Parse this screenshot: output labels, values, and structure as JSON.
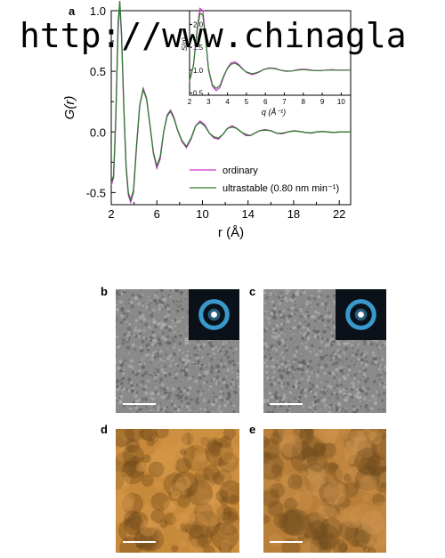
{
  "watermark": "http://www.chinagla",
  "panels": {
    "a": "a",
    "b": "b",
    "c": "c",
    "d": "d",
    "e": "e"
  },
  "chart_data": [
    {
      "type": "line",
      "xlabel": "r (Å)",
      "ylabel": "G(r)",
      "xlim": [
        2,
        23
      ],
      "ylim": [
        -0.6,
        1.0
      ],
      "xticks": [
        "2",
        "6",
        "10",
        "14",
        "18",
        "22"
      ],
      "yticks": [
        "1.0",
        "0.5",
        "0.0",
        "-0.5"
      ],
      "legend_position": "bottom-right",
      "series": [
        {
          "name": "ordinary",
          "color": "#cc33cc",
          "x": [
            2.0,
            2.2,
            2.4,
            2.6,
            2.75,
            2.9,
            3.1,
            3.3,
            3.5,
            3.7,
            3.95,
            4.2,
            4.5,
            4.8,
            5.1,
            5.4,
            5.7,
            6.0,
            6.3,
            6.6,
            6.9,
            7.2,
            7.5,
            7.8,
            8.2,
            8.6,
            9.0,
            9.4,
            9.8,
            10.2,
            10.6,
            11.0,
            11.4,
            11.8,
            12.2,
            12.6,
            13.0,
            13.4,
            13.8,
            14.2,
            14.6,
            15.0,
            15.5,
            16.0,
            16.5,
            17.0,
            17.5,
            18.0,
            18.5,
            19.0,
            19.5,
            20.0,
            20.5,
            21.0,
            21.5,
            22.0,
            22.5,
            23.0
          ],
          "y": [
            -0.44,
            -0.38,
            0.1,
            0.85,
            1.05,
            0.8,
            0.2,
            -0.3,
            -0.52,
            -0.58,
            -0.5,
            -0.15,
            0.22,
            0.36,
            0.28,
            0.05,
            -0.18,
            -0.3,
            -0.22,
            0.0,
            0.14,
            0.18,
            0.12,
            0.02,
            -0.08,
            -0.13,
            -0.06,
            0.05,
            0.09,
            0.06,
            -0.01,
            -0.05,
            -0.06,
            -0.02,
            0.03,
            0.05,
            0.03,
            0.0,
            -0.03,
            -0.03,
            -0.01,
            0.01,
            0.02,
            0.01,
            -0.01,
            -0.015,
            0.0,
            0.01,
            0.005,
            -0.005,
            -0.01,
            0.0,
            0.005,
            0.0,
            -0.005,
            0.0,
            0.0,
            0.0
          ]
        },
        {
          "name": "ultrastable (0.80 nm min⁻¹)",
          "color": "#2e7d2e",
          "x": [
            2.0,
            2.2,
            2.4,
            2.6,
            2.75,
            2.9,
            3.1,
            3.3,
            3.5,
            3.7,
            3.95,
            4.2,
            4.5,
            4.8,
            5.1,
            5.4,
            5.7,
            6.0,
            6.3,
            6.6,
            6.9,
            7.2,
            7.5,
            7.8,
            8.2,
            8.6,
            9.0,
            9.4,
            9.8,
            10.2,
            10.6,
            11.0,
            11.4,
            11.8,
            12.2,
            12.6,
            13.0,
            13.4,
            13.8,
            14.2,
            14.6,
            15.0,
            15.5,
            16.0,
            16.5,
            17.0,
            17.5,
            18.0,
            18.5,
            19.0,
            19.5,
            20.0,
            20.5,
            21.0,
            21.5,
            22.0,
            22.5,
            23.0
          ],
          "y": [
            -0.42,
            -0.36,
            0.12,
            0.9,
            1.08,
            0.82,
            0.22,
            -0.28,
            -0.5,
            -0.56,
            -0.48,
            -0.13,
            0.22,
            0.35,
            0.27,
            0.05,
            -0.17,
            -0.28,
            -0.2,
            0.0,
            0.13,
            0.17,
            0.11,
            0.02,
            -0.07,
            -0.12,
            -0.05,
            0.05,
            0.08,
            0.05,
            -0.01,
            -0.04,
            -0.05,
            -0.02,
            0.03,
            0.04,
            0.03,
            0.0,
            -0.02,
            -0.03,
            -0.01,
            0.01,
            0.015,
            0.01,
            -0.01,
            -0.01,
            0.0,
            0.008,
            0.004,
            -0.004,
            -0.008,
            0.0,
            0.004,
            0.0,
            -0.004,
            0.0,
            0.0,
            0.0
          ]
        }
      ]
    },
    {
      "type": "line",
      "xlabel": "q (Å⁻¹)",
      "ylabel": "S(q)",
      "xlim": [
        2,
        10.5
      ],
      "ylim": [
        0.45,
        2.3
      ],
      "xticks": [
        "2",
        "3",
        "4",
        "5",
        "6",
        "7",
        "8",
        "9",
        "10"
      ],
      "yticks": [
        "0.5",
        "1.0",
        "1.5",
        "2.0"
      ],
      "series": [
        {
          "name": "ordinary",
          "color": "#cc33cc",
          "x": [
            2.0,
            2.2,
            2.4,
            2.55,
            2.7,
            2.85,
            3.0,
            3.2,
            3.4,
            3.6,
            3.8,
            4.0,
            4.2,
            4.4,
            4.6,
            4.8,
            5.0,
            5.3,
            5.6,
            5.9,
            6.2,
            6.5,
            6.8,
            7.1,
            7.4,
            7.7,
            8.0,
            8.3,
            8.6,
            8.9,
            9.2,
            9.5,
            9.8,
            10.1,
            10.5
          ],
          "y": [
            0.75,
            1.1,
            1.9,
            2.35,
            2.3,
            1.7,
            1.0,
            0.65,
            0.55,
            0.62,
            0.85,
            1.05,
            1.16,
            1.18,
            1.12,
            1.03,
            0.95,
            0.9,
            0.94,
            1.01,
            1.05,
            1.04,
            1.0,
            0.97,
            0.98,
            1.01,
            1.02,
            1.01,
            0.99,
            0.99,
            1.0,
            1.01,
            1.0,
            1.0,
            1.0
          ]
        },
        {
          "name": "ultrastable (0.80 nm min⁻¹)",
          "color": "#2e7d2e",
          "x": [
            2.0,
            2.2,
            2.4,
            2.55,
            2.7,
            2.85,
            3.0,
            3.2,
            3.4,
            3.6,
            3.8,
            4.0,
            4.2,
            4.4,
            4.6,
            4.8,
            5.0,
            5.3,
            5.6,
            5.9,
            6.2,
            6.5,
            6.8,
            7.1,
            7.4,
            7.7,
            8.0,
            8.3,
            8.6,
            8.9,
            9.2,
            9.5,
            9.8,
            10.1,
            10.5
          ],
          "y": [
            0.78,
            1.1,
            1.85,
            2.25,
            2.2,
            1.65,
            1.02,
            0.68,
            0.6,
            0.66,
            0.87,
            1.04,
            1.13,
            1.15,
            1.1,
            1.02,
            0.96,
            0.92,
            0.95,
            1.01,
            1.04,
            1.03,
            1.0,
            0.98,
            0.98,
            1.0,
            1.01,
            1.0,
            0.99,
            0.99,
            1.0,
            1.0,
            1.0,
            1.0,
            1.0
          ]
        }
      ]
    }
  ],
  "micrographs": {
    "b": {
      "kind": "bright-field TEM",
      "colors": [
        "#8a8a8a",
        "#5a5a5a",
        "#b8b8b8"
      ],
      "has_inset": true
    },
    "c": {
      "kind": "bright-field TEM",
      "colors": [
        "#8a8a8a",
        "#5a5a5a",
        "#b8b8b8"
      ],
      "has_inset": true
    },
    "d": {
      "kind": "amplitude map",
      "colors": [
        "#c7893a",
        "#6b4518",
        "#d99b4c"
      ],
      "has_inset": false
    },
    "e": {
      "kind": "amplitude map",
      "colors": [
        "#b97e38",
        "#6e4a1c",
        "#cf9650"
      ],
      "has_inset": false
    }
  },
  "inset_diffraction": {
    "ring_color": "#3fa9e0",
    "center_color": "#ffffff",
    "background": "#0a1118"
  }
}
